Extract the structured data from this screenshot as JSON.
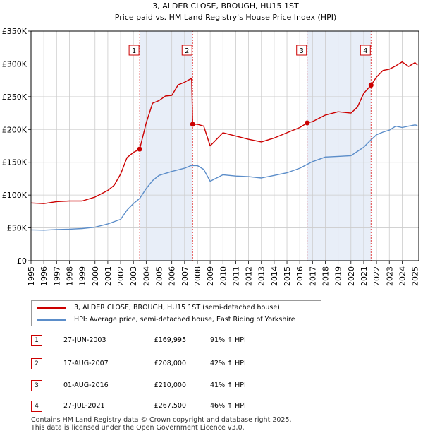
{
  "chart_data": {
    "type": "line",
    "title": "3, ALDER CLOSE, BROUGH, HU15 1ST",
    "subtitle": "Price paid vs. HM Land Registry's House Price Index (HPI)",
    "xlim": [
      1995,
      2025.3
    ],
    "ylim": [
      0,
      350000
    ],
    "x_ticks": [
      1995,
      1996,
      1997,
      1998,
      1999,
      2000,
      2001,
      2002,
      2003,
      2004,
      2005,
      2006,
      2007,
      2008,
      2009,
      2010,
      2011,
      2012,
      2013,
      2014,
      2015,
      2016,
      2017,
      2018,
      2019,
      2020,
      2021,
      2022,
      2023,
      2024,
      2025
    ],
    "x_tick_labels": [
      "1995",
      "1996",
      "1997",
      "1998",
      "1999",
      "2000",
      "2001",
      "2002",
      "2003",
      "2004",
      "2005",
      "2006",
      "2007",
      "2008",
      "2009",
      "2010",
      "2011",
      "2012",
      "2013",
      "2014",
      "2015",
      "2016",
      "2017",
      "2018",
      "2019",
      "2020",
      "2021",
      "2022",
      "2023",
      "2024",
      "2025"
    ],
    "y_ticks": [
      0,
      50000,
      100000,
      150000,
      200000,
      250000,
      300000,
      350000
    ],
    "y_tick_labels": [
      "£0",
      "£50K",
      "£100K",
      "£150K",
      "£200K",
      "£250K",
      "£300K",
      "£350K"
    ],
    "grid": true,
    "series": [
      {
        "name": "3, ALDER CLOSE, BROUGH, HU15 1ST (semi-detached house)",
        "color": "#cc0000",
        "x": [
          1995.0,
          1996.0,
          1997.0,
          1998.0,
          1999.0,
          2000.0,
          2001.0,
          2001.5,
          2002.0,
          2002.5,
          2003.0,
          2003.49,
          2004.0,
          2004.5,
          2005.0,
          2005.5,
          2006.0,
          2006.5,
          2007.0,
          2007.55,
          2007.63,
          2008.0,
          2008.5,
          2009.0,
          2009.4,
          2010.0,
          2011.0,
          2012.0,
          2013.0,
          2014.0,
          2015.0,
          2016.0,
          2016.58,
          2017.0,
          2018.0,
          2019.0,
          2020.0,
          2020.5,
          2021.0,
          2021.57,
          2022.0,
          2022.5,
          2023.0,
          2023.5,
          2024.0,
          2024.5,
          2025.0,
          2025.2
        ],
        "y": [
          88000,
          87000,
          90000,
          91000,
          91000,
          97000,
          107000,
          115000,
          132000,
          157000,
          165000,
          169995,
          210000,
          240000,
          244000,
          251000,
          252000,
          268000,
          272000,
          278000,
          208000,
          208000,
          205000,
          175000,
          183000,
          195000,
          190000,
          185000,
          181000,
          187000,
          195000,
          203000,
          210000,
          212000,
          222000,
          227000,
          225000,
          234000,
          255000,
          267500,
          280000,
          290000,
          292000,
          297000,
          303000,
          296000,
          302000,
          298000
        ]
      },
      {
        "name": "HPI: Average price, semi-detached house, East Riding of Yorkshire",
        "color": "#5b8dc9",
        "x": [
          1995.0,
          1996.0,
          1997.0,
          1998.0,
          1999.0,
          2000.0,
          2001.0,
          2002.0,
          2002.5,
          2003.0,
          2003.5,
          2004.0,
          2004.5,
          2005.0,
          2006.0,
          2007.0,
          2007.5,
          2008.0,
          2008.5,
          2009.0,
          2010.0,
          2011.0,
          2012.0,
          2013.0,
          2014.0,
          2015.0,
          2016.0,
          2017.0,
          2018.0,
          2019.0,
          2020.0,
          2021.0,
          2021.5,
          2022.0,
          2022.5,
          2023.0,
          2023.5,
          2024.0,
          2024.5,
          2025.0,
          2025.2
        ],
        "y": [
          47000,
          46500,
          47500,
          48000,
          49000,
          51000,
          56000,
          63000,
          77000,
          87000,
          95000,
          110000,
          122000,
          130000,
          136000,
          141000,
          145000,
          145000,
          139000,
          121000,
          131000,
          129000,
          128000,
          126000,
          130000,
          134000,
          141000,
          151000,
          158000,
          159000,
          160000,
          173000,
          183000,
          192000,
          196000,
          199000,
          205000,
          203000,
          205000,
          207000,
          206000
        ]
      }
    ],
    "sale_markers": [
      {
        "label": "1",
        "x": 2003.49,
        "y": 169995
      },
      {
        "label": "2",
        "x": 2007.63,
        "y": 208000
      },
      {
        "label": "3",
        "x": 2016.58,
        "y": 210000
      },
      {
        "label": "4",
        "x": 2021.57,
        "y": 267500
      }
    ],
    "shaded_periods": [
      [
        2003.49,
        2007.63
      ],
      [
        2016.58,
        2021.57
      ]
    ]
  },
  "legend": {
    "property_label": "3, ALDER CLOSE, BROUGH, HU15 1ST (semi-detached house)",
    "hpi_label": "HPI: Average price, semi-detached house, East Riding of Yorkshire"
  },
  "sales": [
    {
      "num": "1",
      "date": "27-JUN-2003",
      "price": "£169,995",
      "hpi": "91% ↑ HPI"
    },
    {
      "num": "2",
      "date": "17-AUG-2007",
      "price": "£208,000",
      "hpi": "42% ↑ HPI"
    },
    {
      "num": "3",
      "date": "01-AUG-2016",
      "price": "£210,000",
      "hpi": "41% ↑ HPI"
    },
    {
      "num": "4",
      "date": "27-JUL-2021",
      "price": "£267,500",
      "hpi": "46% ↑ HPI"
    }
  ],
  "footer": {
    "line1": "Contains HM Land Registry data © Crown copyright and database right 2025.",
    "line2": "This data is licensed under the Open Government Licence v3.0."
  },
  "colors": {
    "property": "#cc0000",
    "hpi": "#5b8dc9",
    "shade": "#e8eef8",
    "grid": "#cccccc"
  }
}
